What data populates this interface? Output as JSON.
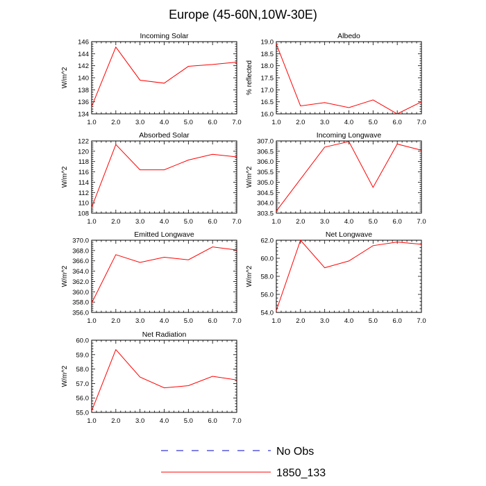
{
  "figure": {
    "title": "Europe (45-60N,10W-30E)",
    "legend": [
      {
        "label": "No Obs",
        "color": "#0000cc",
        "style": "dashed"
      },
      {
        "label": "1850_133",
        "color": "#ff0000",
        "style": "solid"
      }
    ]
  },
  "chart_data": [
    {
      "type": "line",
      "title": "Incoming Solar",
      "ylabel": "W/m^2",
      "x": [
        1.0,
        2.0,
        3.0,
        4.0,
        5.0,
        6.0,
        7.0
      ],
      "xlim": [
        1.0,
        7.0
      ],
      "xticks": [
        "1.0",
        "2.0",
        "3.0",
        "4.0",
        "5.0",
        "6.0",
        "7.0"
      ],
      "ylim": [
        134,
        146
      ],
      "yticks": [
        "134",
        "136",
        "138",
        "140",
        "142",
        "144",
        "146"
      ],
      "series": [
        {
          "name": "1850_133",
          "color": "#ff0000",
          "values": [
            135.2,
            145.1,
            139.6,
            139.1,
            141.9,
            142.2,
            142.6
          ]
        }
      ]
    },
    {
      "type": "line",
      "title": "Albedo",
      "ylabel": "% reflected",
      "x": [
        1.0,
        2.0,
        3.0,
        4.0,
        5.0,
        6.0,
        7.0
      ],
      "xlim": [
        1.0,
        7.0
      ],
      "xticks": [
        "1.0",
        "2.0",
        "3.0",
        "4.0",
        "5.0",
        "6.0",
        "7.0"
      ],
      "ylim": [
        16.0,
        19.0
      ],
      "yticks": [
        "16.0",
        "16.5",
        "17.0",
        "17.5",
        "18.0",
        "18.5",
        "19.0"
      ],
      "series": [
        {
          "name": "1850_133",
          "color": "#ff0000",
          "values": [
            18.9,
            16.33,
            16.47,
            16.26,
            16.58,
            16.0,
            16.5
          ]
        }
      ]
    },
    {
      "type": "line",
      "title": "Absorbed Solar",
      "ylabel": "W/m^2",
      "x": [
        1.0,
        2.0,
        3.0,
        4.0,
        5.0,
        6.0,
        7.0
      ],
      "xlim": [
        1.0,
        7.0
      ],
      "xticks": [
        "1.0",
        "2.0",
        "3.0",
        "4.0",
        "5.0",
        "6.0",
        "7.0"
      ],
      "ylim": [
        108,
        122
      ],
      "yticks": [
        "108",
        "110",
        "112",
        "114",
        "116",
        "118",
        "120",
        "122"
      ],
      "series": [
        {
          "name": "1850_133",
          "color": "#ff0000",
          "values": [
            109.1,
            121.3,
            116.4,
            116.4,
            118.3,
            119.4,
            118.9
          ]
        }
      ]
    },
    {
      "type": "line",
      "title": "Incoming Longwave",
      "ylabel": "W/m^2",
      "x": [
        1.0,
        2.0,
        3.0,
        4.0,
        5.0,
        6.0,
        7.0
      ],
      "xlim": [
        1.0,
        7.0
      ],
      "xticks": [
        "1.0",
        "2.0",
        "3.0",
        "4.0",
        "5.0",
        "6.0",
        "7.0"
      ],
      "ylim": [
        303.5,
        307.0
      ],
      "yticks": [
        "303.5",
        "304.0",
        "304.5",
        "305.0",
        "305.5",
        "306.0",
        "306.5",
        "307.0"
      ],
      "series": [
        {
          "name": "1850_133",
          "color": "#ff0000",
          "values": [
            303.6,
            305.15,
            306.7,
            306.97,
            304.75,
            306.85,
            306.55
          ]
        }
      ]
    },
    {
      "type": "line",
      "title": "Emitted Longwave",
      "ylabel": "W/m^2",
      "x": [
        1.0,
        2.0,
        3.0,
        4.0,
        5.0,
        6.0,
        7.0
      ],
      "xlim": [
        1.0,
        7.0
      ],
      "xticks": [
        "1.0",
        "2.0",
        "3.0",
        "4.0",
        "5.0",
        "6.0",
        "7.0"
      ],
      "ylim": [
        356.0,
        370.0
      ],
      "yticks": [
        "356.0",
        "358.0",
        "360.0",
        "362.0",
        "364.0",
        "366.0",
        "368.0",
        "370.0"
      ],
      "series": [
        {
          "name": "1850_133",
          "color": "#ff0000",
          "values": [
            357.8,
            367.2,
            365.7,
            366.7,
            366.2,
            368.7,
            368.1
          ]
        }
      ]
    },
    {
      "type": "line",
      "title": "Net Longwave",
      "ylabel": "W/m^2",
      "x": [
        1.0,
        2.0,
        3.0,
        4.0,
        5.0,
        6.0,
        7.0
      ],
      "xlim": [
        1.0,
        7.0
      ],
      "xticks": [
        "1.0",
        "2.0",
        "3.0",
        "4.0",
        "5.0",
        "6.0",
        "7.0"
      ],
      "ylim": [
        54.0,
        62.0
      ],
      "yticks": [
        "54.0",
        "56.0",
        "58.0",
        "60.0",
        "62.0"
      ],
      "series": [
        {
          "name": "1850_133",
          "color": "#ff0000",
          "values": [
            54.2,
            62.0,
            58.95,
            59.7,
            61.4,
            61.8,
            61.55
          ]
        }
      ]
    },
    {
      "type": "line",
      "title": "Net Radiation",
      "ylabel": "W/m^2",
      "x": [
        1.0,
        2.0,
        3.0,
        4.0,
        5.0,
        6.0,
        7.0
      ],
      "xlim": [
        1.0,
        7.0
      ],
      "xticks": [
        "1.0",
        "2.0",
        "3.0",
        "4.0",
        "5.0",
        "6.0",
        "7.0"
      ],
      "ylim": [
        55.0,
        60.0
      ],
      "yticks": [
        "55.0",
        "56.0",
        "57.0",
        "58.0",
        "59.0",
        "60.0"
      ],
      "series": [
        {
          "name": "1850_133",
          "color": "#ff0000",
          "values": [
            55.1,
            59.35,
            57.45,
            56.7,
            56.85,
            57.5,
            57.25
          ]
        }
      ]
    }
  ]
}
